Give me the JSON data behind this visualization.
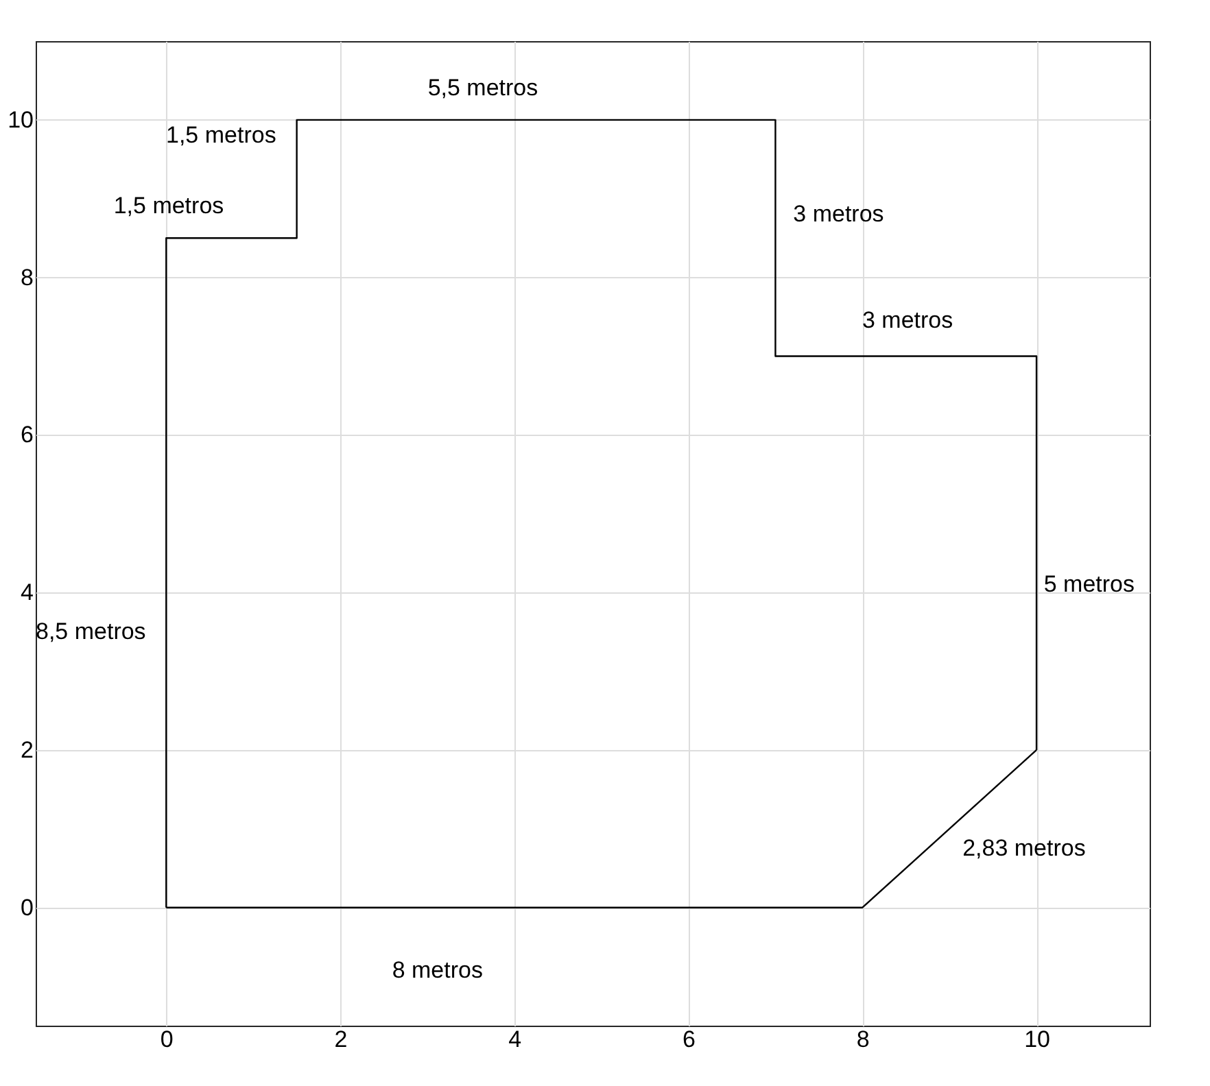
{
  "chart_data": {
    "type": "line",
    "series": [
      {
        "color": "#000000",
        "x": [
          0,
          0,
          1.5,
          1.5,
          7,
          7,
          10,
          10
        ],
        "values": [
          0,
          8.5,
          8.5,
          10,
          10,
          7,
          7,
          2
        ]
      },
      {
        "color": "#000000",
        "x": [
          0,
          8,
          10
        ],
        "values": [
          0,
          0,
          2
        ]
      }
    ],
    "xlim": [
      -1.5,
      11.3
    ],
    "ylim": [
      -1.5,
      11
    ],
    "xticks": [
      0,
      2,
      4,
      6,
      8,
      10
    ],
    "yticks": [
      0,
      2,
      4,
      6,
      8,
      10
    ],
    "grid": true,
    "marker": "none",
    "line_style": "solid",
    "annotations": [
      "5,5 metros",
      "1,5 metros",
      "1,5 metros",
      "3 metros",
      "3 metros",
      "5 metros",
      "8,5 metros",
      "2,83 metros",
      "8 metros"
    ]
  }
}
